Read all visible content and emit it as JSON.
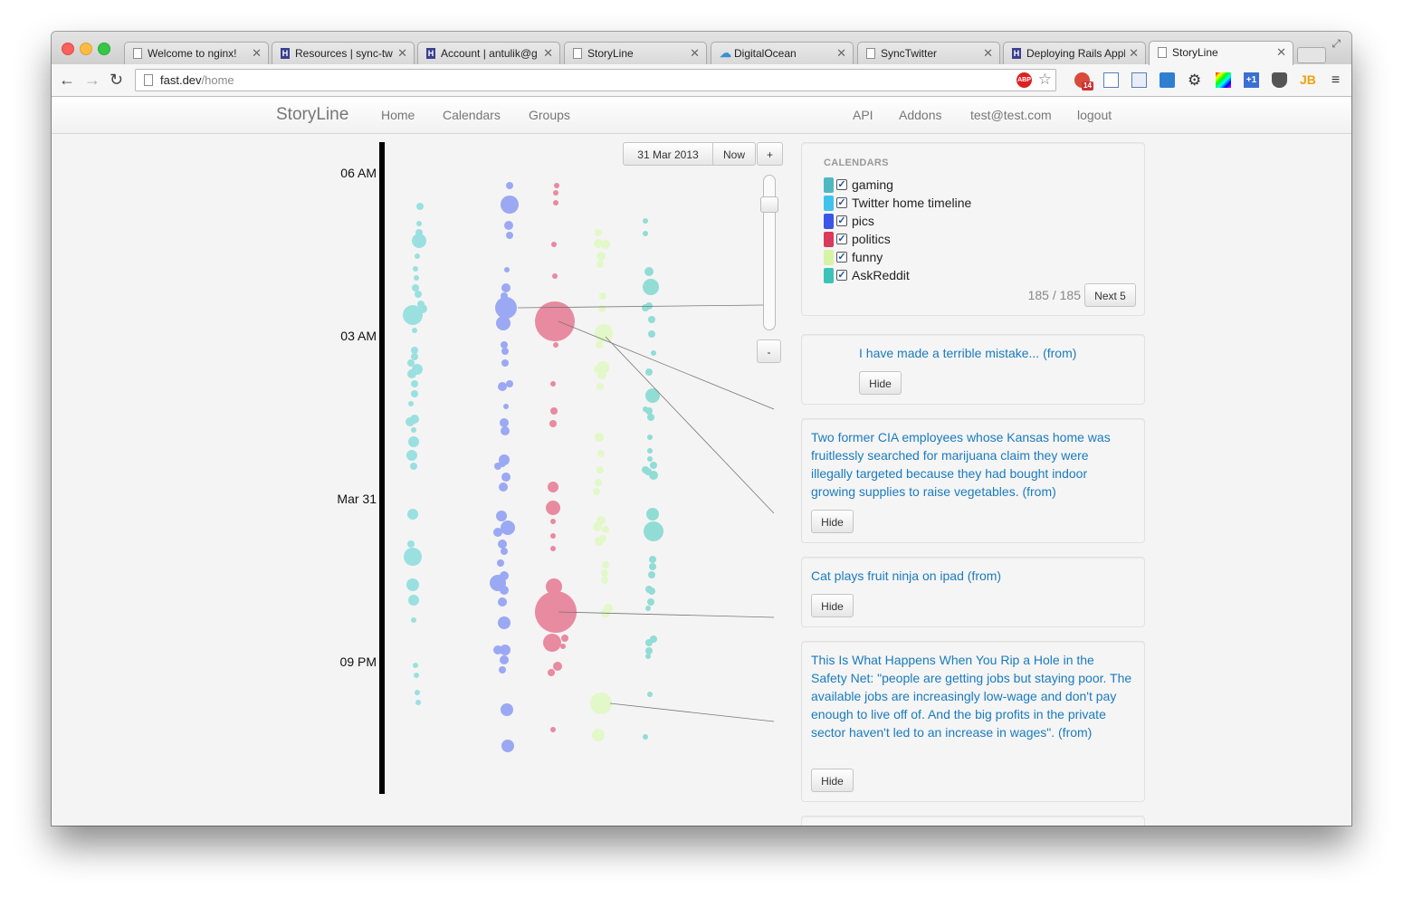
{
  "browser": {
    "tabs": [
      {
        "title": "Welcome to nginx!",
        "favicon": "page-icon"
      },
      {
        "title": "Resources | sync-tw",
        "favicon": "h-icon"
      },
      {
        "title": "Account | antulik@g",
        "favicon": "h-icon"
      },
      {
        "title": "StoryLine",
        "favicon": "page-icon"
      },
      {
        "title": "DigitalOcean",
        "favicon": "cloud-icon"
      },
      {
        "title": "SyncTwitter",
        "favicon": "page-icon"
      },
      {
        "title": "Deploying Rails Appl",
        "favicon": "h-icon"
      },
      {
        "title": "StoryLine",
        "favicon": "page-icon",
        "active": true
      }
    ],
    "address": {
      "host": "fast.dev",
      "path": "/home"
    },
    "badge": "14",
    "abp_label": "ABP"
  },
  "app": {
    "brand": "StoryLine",
    "nav_left": [
      "Home",
      "Calendars",
      "Groups"
    ],
    "nav_right": [
      "API",
      "Addons",
      "test@test.com",
      "logout"
    ]
  },
  "timeline": {
    "labels": [
      "06 AM",
      "03 AM",
      "Mar 31",
      "09 PM"
    ],
    "date_button": "31 Mar 2013",
    "now_button": "Now",
    "zoom_in": "+",
    "zoom_out": "-"
  },
  "calendars": {
    "header": "CALENDARS",
    "items": [
      {
        "name": "gaming",
        "color": "#4fb8c2"
      },
      {
        "name": "Twitter home timeline",
        "color": "#3fc3ee"
      },
      {
        "name": "pics",
        "color": "#3a55e8"
      },
      {
        "name": "politics",
        "color": "#d93a5e"
      },
      {
        "name": "funny",
        "color": "#d6f3a6"
      },
      {
        "name": "AskReddit",
        "color": "#3fc2b6"
      }
    ],
    "counter": "185 / 185",
    "next_button": "Next 5"
  },
  "stories": [
    {
      "text": "I have made a terrible mistake... (from)",
      "button": "Hide"
    },
    {
      "text": "Two former CIA employees whose Kansas home was fruitlessly searched for marijuana claim they were illegally targeted because they had bought indoor growing supplies to raise vegetables. (from)",
      "button": "Hide"
    },
    {
      "text": "Cat plays fruit ninja on ipad (from)",
      "button": "Hide"
    },
    {
      "text": "This Is What Happens When You Rip a Hole in the Safety Net: \"people are getting jobs but staying poor. The available jobs are increasingly low-wage and don't pay enough to live off of. And the big profits in the private sector haven't led to an increase in wages\". (from)",
      "button": "Hide"
    }
  ],
  "colors": {
    "gaming_bubble": "#9be0e0",
    "pics_bubble": "#9ba8f3",
    "politics_bubble": "#e88aa0",
    "funny_bubble": "#e2f8c8",
    "askreddit_bubble": "#92dcd6",
    "link": "#1a7bbf"
  }
}
